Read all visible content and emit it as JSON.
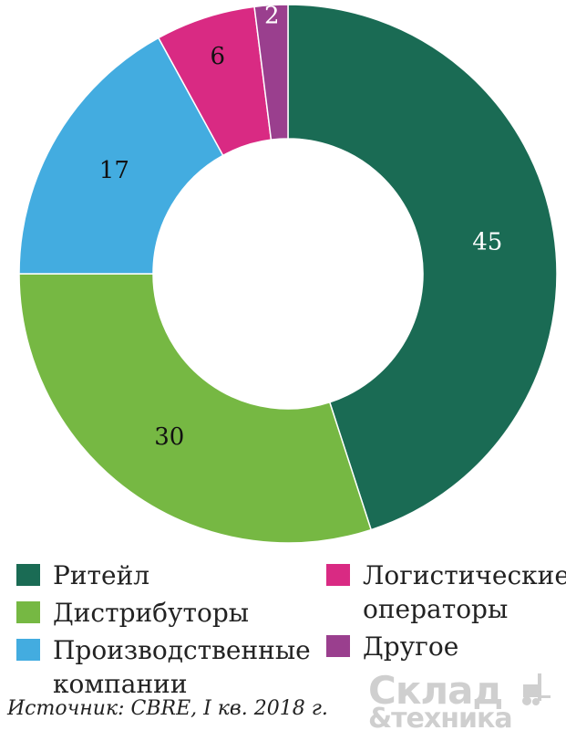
{
  "chart_data": {
    "type": "pie",
    "donut": true,
    "slices": [
      {
        "label": "Ритейл",
        "value": 45,
        "display": "45",
        "color": "#1a6b54",
        "text_color": "#ffffff"
      },
      {
        "label": "Дистрибуторы",
        "value": 30,
        "display": "30",
        "color": "#76b843",
        "text_color": "#111111"
      },
      {
        "label": "Производственные компании",
        "value": 17,
        "display": "17",
        "color": "#43ace0",
        "text_color": "#111111"
      },
      {
        "label": "Логистические операторы",
        "value": 6,
        "display": "6",
        "color": "#d92a83",
        "text_color": "#111111"
      },
      {
        "label": "Другое",
        "value": 2,
        "display": "2",
        "color": "#9a3f8e",
        "text_color": "#ffffff"
      }
    ]
  },
  "legend": {
    "left": [
      {
        "lines": [
          "Ритейл"
        ],
        "color": "#1a6b54"
      },
      {
        "lines": [
          "Дистрибуторы"
        ],
        "color": "#76b843"
      },
      {
        "lines": [
          "Производственные",
          "компании"
        ],
        "color": "#43ace0"
      }
    ],
    "right": [
      {
        "lines": [
          "Логистические",
          "операторы"
        ],
        "color": "#d92a83"
      },
      {
        "lines": [
          "Другое"
        ],
        "color": "#9a3f8e"
      }
    ]
  },
  "source": "Источник: CBRE, I кв. 2018 г.",
  "logo": {
    "line1": "Склад",
    "line2": "&техника"
  }
}
